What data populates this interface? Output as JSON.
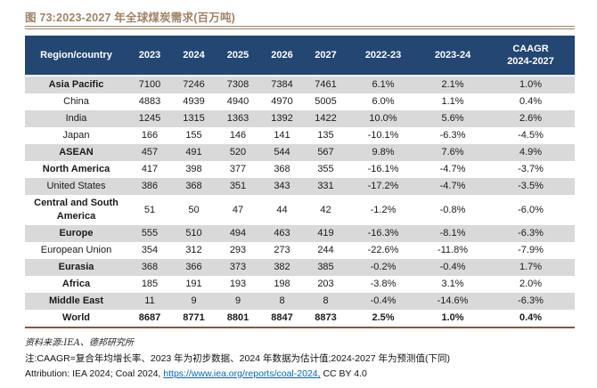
{
  "figure": {
    "title": "图 73:2023-2027 年全球煤炭需求(百万吨)"
  },
  "colors": {
    "header_bg": "#234672",
    "row_alt": "#D9D9D9",
    "title_brown": "#A08264",
    "bottom_rule": "#7A5C40",
    "link_blue": "#0563C1"
  },
  "table": {
    "header": {
      "region": "Region/country",
      "cols": [
        "2023",
        "2024",
        "2025",
        "2026",
        "2027",
        "2022-23",
        "2023-24"
      ],
      "caagr_top": "CAAGR",
      "caagr_bottom": "2024-2027"
    },
    "rows": [
      {
        "region": "Asia Pacific",
        "bold": true,
        "emphasis": false,
        "values": [
          "7100",
          "7246",
          "7308",
          "7384",
          "7461",
          "6.1%",
          "2.1%",
          "1.0%"
        ]
      },
      {
        "region": "China",
        "bold": false,
        "emphasis": false,
        "values": [
          "4883",
          "4939",
          "4940",
          "4970",
          "5005",
          "6.0%",
          "1.1%",
          "0.4%"
        ]
      },
      {
        "region": "India",
        "bold": false,
        "emphasis": false,
        "values": [
          "1245",
          "1315",
          "1363",
          "1392",
          "1422",
          "10.0%",
          "5.6%",
          "2.6%"
        ]
      },
      {
        "region": "Japan",
        "bold": false,
        "emphasis": false,
        "values": [
          "166",
          "155",
          "146",
          "141",
          "135",
          "-10.1%",
          "-6.3%",
          "-4.5%"
        ]
      },
      {
        "region": "ASEAN",
        "bold": true,
        "emphasis": false,
        "values": [
          "457",
          "491",
          "520",
          "544",
          "567",
          "9.8%",
          "7.6%",
          "4.9%"
        ]
      },
      {
        "region": "North America",
        "bold": true,
        "emphasis": false,
        "values": [
          "417",
          "398",
          "377",
          "368",
          "355",
          "-16.1%",
          "-4.7%",
          "-3.7%"
        ]
      },
      {
        "region": "United States",
        "bold": false,
        "emphasis": false,
        "values": [
          "386",
          "368",
          "351",
          "343",
          "331",
          "-17.2%",
          "-4.7%",
          "-3.5%"
        ]
      },
      {
        "region": "Central and South America",
        "bold": true,
        "emphasis": false,
        "values": [
          "51",
          "50",
          "47",
          "44",
          "42",
          "-1.2%",
          "-0.8%",
          "-6.0%"
        ]
      },
      {
        "region": "Europe",
        "bold": true,
        "emphasis": false,
        "values": [
          "555",
          "510",
          "494",
          "463",
          "419",
          "-16.3%",
          "-8.1%",
          "-6.3%"
        ]
      },
      {
        "region": "European Union",
        "bold": false,
        "emphasis": false,
        "values": [
          "354",
          "312",
          "293",
          "273",
          "244",
          "-22.6%",
          "-11.8%",
          "-7.9%"
        ]
      },
      {
        "region": "Eurasia",
        "bold": true,
        "emphasis": false,
        "values": [
          "368",
          "366",
          "373",
          "382",
          "385",
          "-0.2%",
          "-0.4%",
          "1.7%"
        ]
      },
      {
        "region": "Africa",
        "bold": true,
        "emphasis": false,
        "values": [
          "185",
          "191",
          "193",
          "198",
          "203",
          "-3.8%",
          "3.1%",
          "2.0%"
        ]
      },
      {
        "region": "Middle East",
        "bold": true,
        "emphasis": false,
        "values": [
          "11",
          "9",
          "9",
          "8",
          "8",
          "-0.4%",
          "-14.6%",
          "-6.3%"
        ]
      },
      {
        "region": "World",
        "bold": true,
        "emphasis": true,
        "values": [
          "8687",
          "8771",
          "8801",
          "8847",
          "8873",
          "2.5%",
          "1.0%",
          "0.4%"
        ]
      }
    ]
  },
  "footer": {
    "source": "资料来源:IEA、德邦研究所",
    "note": "注:CAAGR=复合年均增长率、2023 年为初步数据、2024 年数据为估计值;2024-2027 年为预测值(下同)",
    "attribution_prefix": "Attribution: IEA 2024; Coal 2024, ",
    "attribution_link": "https://www.iea.org/reports/coal-2024,",
    "attribution_suffix": " CC BY 4.0"
  }
}
